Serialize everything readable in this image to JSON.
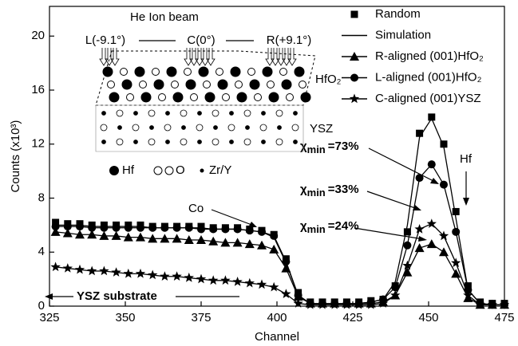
{
  "chart_data": {
    "type": "scatter",
    "x_label": "Channel",
    "y_label": "Counts (x10³)",
    "xlim": [
      325,
      475
    ],
    "ylim": [
      0,
      22.2
    ],
    "xticks": [
      325,
      350,
      375,
      400,
      425,
      450,
      475
    ],
    "yticks": [
      0,
      4,
      8,
      12,
      16,
      20
    ],
    "x": [
      327,
      331,
      335,
      339,
      343,
      347,
      351,
      355,
      359,
      363,
      367,
      371,
      375,
      379,
      383,
      387,
      391,
      395,
      399,
      403,
      407,
      411,
      415,
      419,
      423,
      427,
      431,
      435,
      439,
      443,
      447,
      451,
      455,
      459,
      463,
      467,
      471,
      475
    ],
    "series": [
      {
        "name": "Random",
        "color": "#000",
        "marker": "square",
        "line": false,
        "values": [
          6.2,
          6.1,
          6.1,
          6.0,
          6.0,
          6.0,
          6.0,
          6.0,
          5.9,
          5.9,
          5.9,
          5.9,
          5.9,
          5.8,
          5.8,
          5.8,
          5.7,
          5.6,
          5.3,
          3.5,
          1.0,
          0.3,
          0.3,
          0.3,
          0.3,
          0.3,
          0.4,
          0.5,
          1.5,
          5.5,
          12.8,
          14.0,
          12.0,
          7.0,
          1.5,
          0.3,
          0.2,
          0.2
        ]
      },
      {
        "name": "Simulation",
        "color": "#000",
        "marker": "none",
        "line": true,
        "values": [
          6.0,
          6.0,
          6.0,
          5.9,
          5.9,
          5.9,
          5.9,
          5.9,
          5.8,
          5.8,
          5.8,
          5.8,
          5.8,
          5.7,
          5.7,
          5.7,
          5.6,
          5.5,
          5.1,
          3.2,
          0.8,
          0.2,
          0.2,
          0.2,
          0.2,
          0.2,
          0.3,
          0.5,
          1.8,
          6.0,
          12.5,
          13.9,
          11.8,
          6.5,
          1.2,
          0.2,
          0.1,
          0.1
        ]
      },
      {
        "name": "R-aligned (001)HfO₂",
        "color": "#000",
        "marker": "triangle",
        "line": true,
        "values": [
          5.5,
          5.4,
          5.3,
          5.3,
          5.2,
          5.2,
          5.1,
          5.1,
          5.0,
          5.0,
          5.0,
          4.9,
          4.9,
          4.8,
          4.7,
          4.7,
          4.6,
          4.5,
          4.2,
          2.8,
          0.7,
          0.2,
          0.2,
          0.2,
          0.2,
          0.2,
          0.2,
          0.3,
          0.8,
          2.5,
          4.3,
          4.6,
          4.0,
          2.4,
          0.6,
          0.1,
          0.1,
          0.1
        ]
      },
      {
        "name": "L-aligned (001)HfO₂",
        "color": "#000",
        "marker": "circle",
        "line": true,
        "values": [
          5.9,
          5.9,
          5.9,
          5.8,
          5.8,
          5.8,
          5.8,
          5.8,
          5.8,
          5.8,
          5.8,
          5.8,
          5.7,
          5.7,
          5.7,
          5.7,
          5.6,
          5.5,
          5.2,
          3.3,
          0.8,
          0.2,
          0.2,
          0.2,
          0.2,
          0.2,
          0.3,
          0.5,
          1.4,
          4.5,
          9.5,
          10.5,
          9.0,
          5.5,
          1.2,
          0.2,
          0.1,
          0.1
        ]
      },
      {
        "name": "C-aligned (001)YSZ",
        "color": "#000",
        "marker": "star",
        "line": true,
        "values": [
          2.9,
          2.8,
          2.7,
          2.6,
          2.6,
          2.5,
          2.4,
          2.4,
          2.3,
          2.2,
          2.2,
          2.1,
          2.0,
          1.9,
          1.9,
          1.8,
          1.7,
          1.6,
          1.4,
          0.9,
          0.2,
          0.1,
          0.1,
          0.1,
          0.1,
          0.1,
          0.1,
          0.2,
          0.8,
          3.0,
          5.7,
          6.1,
          5.2,
          3.2,
          0.8,
          0.1,
          0.1,
          0.1
        ]
      }
    ],
    "annotations": {
      "co": "Co",
      "hf": "Hf",
      "substrate": "YSZ substrate",
      "chi": [
        {
          "symbol": "χ",
          "sub": "min",
          "text": "=73%"
        },
        {
          "symbol": "χ",
          "sub": "min",
          "text": "=33%"
        },
        {
          "symbol": "χ",
          "sub": "min",
          "text": "=24%"
        }
      ]
    },
    "inset": {
      "title": "He Ion beam",
      "left": "L(-9.1°)",
      "center": "C(0°)",
      "right": "R(+9.1°)",
      "layer_top": "HfO₂",
      "layer_bottom": "YSZ",
      "key": [
        "Hf",
        "O",
        "Zr/Y"
      ]
    }
  }
}
